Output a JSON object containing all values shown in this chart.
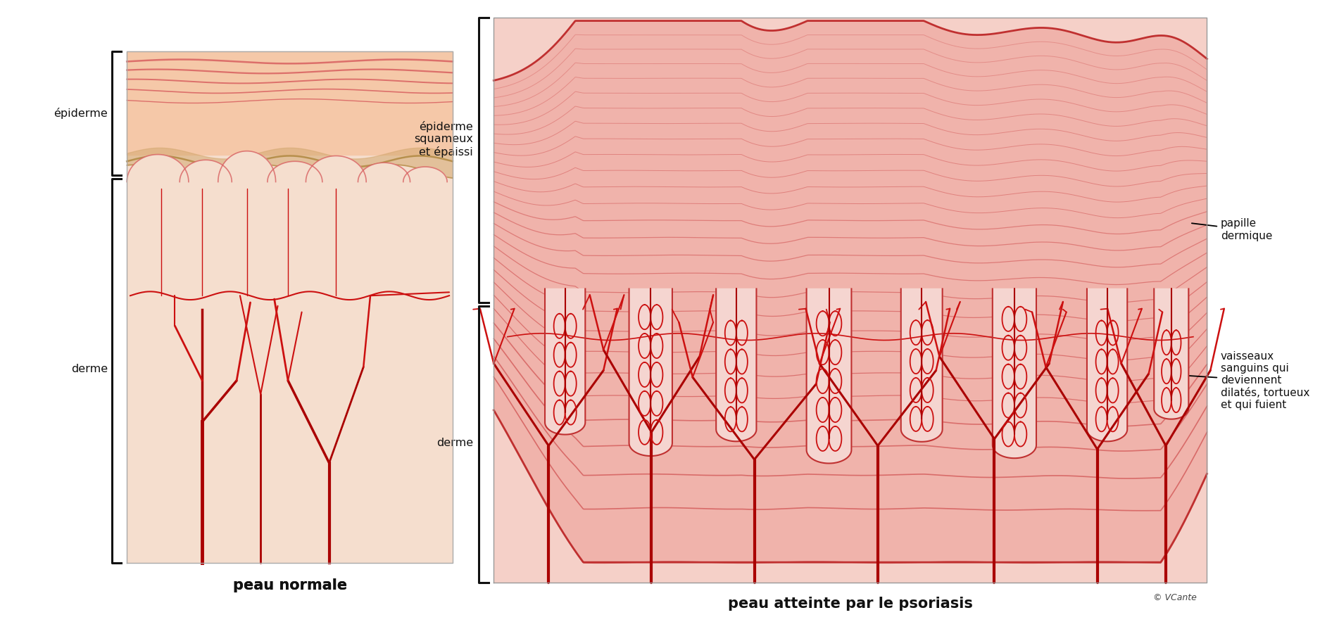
{
  "bg_color": "#ffffff",
  "normal_skin_fill": "#f5dece",
  "normal_epidermis_fill": "#f5c8a8",
  "normal_epidermis_line": "#d86060",
  "normal_brown_line": "#b89060",
  "blood_red": "#cc1010",
  "blood_red_dark": "#aa0000",
  "psoriasis_dermis_fill": "#f5d0c8",
  "psoriasis_epidermis_fill": "#f0b0a8",
  "psoriasis_line": "#d05050",
  "psoriasis_line_dark": "#c03030",
  "white_fill": "#ffffff",
  "bracket_color": "#111111",
  "text_color": "#111111",
  "label_epi_normal": "épiderme",
  "label_derme_normal": "derme",
  "label_epi_psoriasis": "épiderme\nsquameux\net épaissi",
  "label_derme_psoriasis": "derme",
  "label_papille": "papille\ndermique",
  "label_vaisseaux": "vaisseaux\nsanguins qui\ndeviennent\ndilatés, tortueux\net qui fuient",
  "title_normal": "peau normale",
  "title_psoriasis": "peau atteinte par le psoriasis",
  "copyright": "© VCante"
}
